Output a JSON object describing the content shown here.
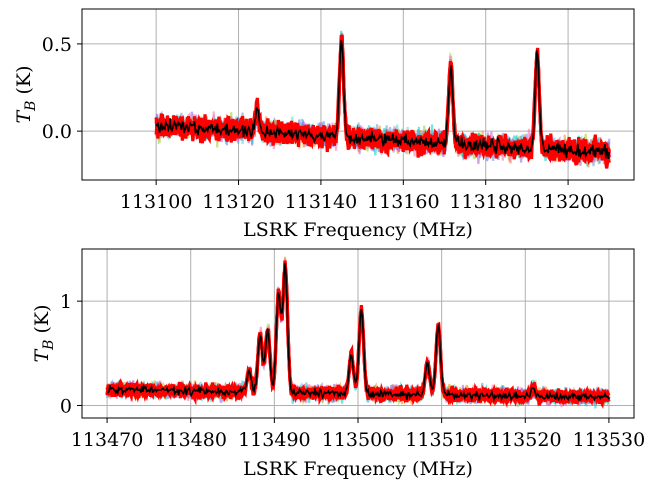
{
  "chart_data": [
    {
      "type": "line",
      "xlabel": "LSRK Frequency (MHz)",
      "ylabel": "T_B (K)",
      "xlim": [
        113082,
        113216
      ],
      "ylim": [
        -0.28,
        0.7
      ],
      "xticks": [
        113100,
        113120,
        113140,
        113160,
        113180,
        113200
      ],
      "yticks": [
        0.0,
        0.5
      ],
      "ytick_labels": [
        "0.0",
        "0.5"
      ],
      "grid": true,
      "x_range": [
        113100,
        113210
      ],
      "baseline": [
        [
          113100,
          0.03
        ],
        [
          113124,
          0.0
        ],
        [
          113144,
          -0.03
        ],
        [
          113175,
          -0.08
        ],
        [
          113210,
          -0.12
        ]
      ],
      "features": [
        {
          "center": 113124.5,
          "peak": 0.12
        },
        {
          "center": 113145.0,
          "peak": 0.55
        },
        {
          "center": 113171.5,
          "peak": 0.45
        },
        {
          "center": 113192.5,
          "peak": 0.55
        }
      ],
      "series": [
        {
          "kind": "samples",
          "color": "#ff0000"
        },
        {
          "kind": "mean",
          "color": "#000000"
        }
      ]
    },
    {
      "type": "line",
      "xlabel": "LSRK Frequency (MHz)",
      "ylabel": "T_B (K)",
      "xlim": [
        113467,
        113533
      ],
      "ylim": [
        -0.12,
        1.5
      ],
      "xticks": [
        113470,
        113480,
        113490,
        113500,
        113510,
        113520,
        113530
      ],
      "yticks": [
        0,
        1
      ],
      "ytick_labels": [
        "0",
        "1"
      ],
      "grid": true,
      "x_range": [
        113470,
        113530
      ],
      "baseline": [
        [
          113470,
          0.15
        ],
        [
          113530,
          0.08
        ]
      ],
      "features": [
        {
          "center": 113487.0,
          "peak": 0.2
        },
        {
          "center": 113488.3,
          "peak": 0.55
        },
        {
          "center": 113489.2,
          "peak": 0.6
        },
        {
          "center": 113490.5,
          "peak": 0.95
        },
        {
          "center": 113491.3,
          "peak": 1.2
        },
        {
          "center": 113499.2,
          "peak": 0.35
        },
        {
          "center": 113500.4,
          "peak": 0.8
        },
        {
          "center": 113508.3,
          "peak": 0.3
        },
        {
          "center": 113509.6,
          "peak": 0.65
        },
        {
          "center": 113521.0,
          "peak": 0.06
        }
      ],
      "series": [
        {
          "kind": "samples",
          "color": "#ff0000"
        },
        {
          "kind": "mean",
          "color": "#000000"
        }
      ]
    }
  ]
}
